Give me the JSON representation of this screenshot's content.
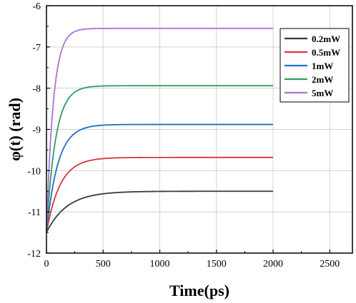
{
  "chart_data": {
    "type": "line",
    "title": "",
    "xlabel": "Time(ps)",
    "ylabel": "φ(t) (rad)",
    "xlim": [
      0,
      2700
    ],
    "ylim": [
      -12,
      -6
    ],
    "xticks": [
      0,
      500,
      1000,
      1500,
      2000,
      2500
    ],
    "yticks": [
      -12,
      -11,
      -10,
      -9,
      -8,
      -7,
      -6
    ],
    "grid": true,
    "legend_position": "top-right",
    "series": [
      {
        "name": "0.2mW",
        "color": "#3a3a3a",
        "start": -11.5,
        "steady": -10.5,
        "tau": 180,
        "x": [
          0,
          100,
          200,
          300,
          400,
          500,
          700,
          1000,
          1500,
          2000
        ],
        "y": [
          -11.5,
          -11.05,
          -10.82,
          -10.69,
          -10.62,
          -10.57,
          -10.53,
          -10.51,
          -10.5,
          -10.5
        ]
      },
      {
        "name": "0.5mW",
        "color": "#d9363e",
        "start": -11.5,
        "steady": -9.68,
        "tau": 120,
        "x": [
          0,
          100,
          200,
          300,
          400,
          500,
          700,
          1000,
          1500,
          2000
        ],
        "y": [
          -11.5,
          -10.47,
          -10.02,
          -9.82,
          -9.74,
          -9.71,
          -9.69,
          -9.68,
          -9.68,
          -9.68
        ]
      },
      {
        "name": "1mW",
        "color": "#1f6fc4",
        "start": -11.5,
        "steady": -8.88,
        "tau": 100,
        "x": [
          0,
          100,
          200,
          300,
          400,
          500,
          700,
          1000,
          1500,
          2000
        ],
        "y": [
          -11.5,
          -9.85,
          -9.23,
          -9.01,
          -8.93,
          -8.9,
          -8.89,
          -8.88,
          -8.88,
          -8.88
        ]
      },
      {
        "name": "2mW",
        "color": "#2e9e62",
        "start": -11.5,
        "steady": -7.94,
        "tau": 80,
        "x": [
          0,
          100,
          200,
          300,
          400,
          500,
          700,
          1000,
          1500,
          2000
        ],
        "y": [
          -11.5,
          -8.95,
          -8.24,
          -8.02,
          -7.96,
          -7.95,
          -7.94,
          -7.94,
          -7.94,
          -7.94
        ]
      },
      {
        "name": "5mW",
        "color": "#a774d6",
        "start": -11.5,
        "steady": -6.55,
        "tau": 60,
        "x": [
          0,
          100,
          200,
          300,
          400,
          500,
          700,
          1000,
          1500,
          2000
        ],
        "y": [
          -11.5,
          -7.45,
          -6.73,
          -6.6,
          -6.56,
          -6.55,
          -6.55,
          -6.55,
          -6.55,
          -6.55
        ]
      }
    ]
  }
}
